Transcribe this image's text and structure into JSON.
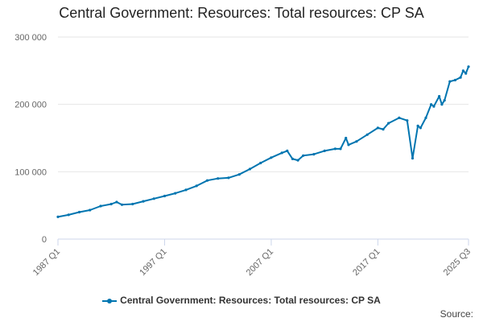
{
  "chart_data": {
    "type": "line",
    "title": "Central Government: Resources: Total resources: CP SA",
    "xlabel": "",
    "ylabel": "",
    "ylim": [
      0,
      300000
    ],
    "y_ticks": [
      0,
      100000,
      200000,
      300000
    ],
    "y_tick_labels": [
      "0",
      "100 000",
      "200 000",
      "300 000"
    ],
    "x_range": [
      "1987 Q1",
      "2025 Q3"
    ],
    "x_ticks": [
      "1987 Q1",
      "1997 Q1",
      "2007 Q1",
      "2017 Q1",
      "2025 Q3"
    ],
    "grid": true,
    "legend_position": "bottom",
    "series": [
      {
        "name": "Central Government: Resources: Total resources: CP SA",
        "color": "#0075b0",
        "points": [
          [
            "1987 Q1",
            33000
          ],
          [
            "1988 Q1",
            36000
          ],
          [
            "1989 Q1",
            40000
          ],
          [
            "1990 Q1",
            43000
          ],
          [
            "1991 Q1",
            49000
          ],
          [
            "1992 Q1",
            52000
          ],
          [
            "1992 Q3",
            55000
          ],
          [
            "1993 Q1",
            51000
          ],
          [
            "1994 Q1",
            52000
          ],
          [
            "1995 Q1",
            56000
          ],
          [
            "1996 Q1",
            60000
          ],
          [
            "1997 Q1",
            64000
          ],
          [
            "1998 Q1",
            68000
          ],
          [
            "1999 Q1",
            73000
          ],
          [
            "2000 Q1",
            79000
          ],
          [
            "2001 Q1",
            87000
          ],
          [
            "2002 Q1",
            90000
          ],
          [
            "2003 Q1",
            91000
          ],
          [
            "2004 Q1",
            96000
          ],
          [
            "2005 Q1",
            104000
          ],
          [
            "2006 Q1",
            113000
          ],
          [
            "2007 Q1",
            121000
          ],
          [
            "2008 Q1",
            128000
          ],
          [
            "2008 Q3",
            131000
          ],
          [
            "2009 Q1",
            119000
          ],
          [
            "2009 Q3",
            117000
          ],
          [
            "2010 Q1",
            124000
          ],
          [
            "2011 Q1",
            126000
          ],
          [
            "2012 Q1",
            131000
          ],
          [
            "2013 Q1",
            134000
          ],
          [
            "2013 Q3",
            134000
          ],
          [
            "2014 Q1",
            150000
          ],
          [
            "2014 Q2",
            140000
          ],
          [
            "2015 Q1",
            145000
          ],
          [
            "2016 Q1",
            155000
          ],
          [
            "2017 Q1",
            165000
          ],
          [
            "2017 Q3",
            163000
          ],
          [
            "2018 Q1",
            172000
          ],
          [
            "2019 Q1",
            180000
          ],
          [
            "2019 Q4",
            176000
          ],
          [
            "2020 Q2",
            120000
          ],
          [
            "2020 Q4",
            168000
          ],
          [
            "2021 Q1",
            165000
          ],
          [
            "2021 Q3",
            180000
          ],
          [
            "2022 Q1",
            200000
          ],
          [
            "2022 Q2",
            197000
          ],
          [
            "2022 Q4",
            212000
          ],
          [
            "2023 Q1",
            200000
          ],
          [
            "2023 Q2",
            206000
          ],
          [
            "2023 Q4",
            234000
          ],
          [
            "2024 Q2",
            236000
          ],
          [
            "2024 Q4",
            240000
          ],
          [
            "2025 Q1",
            250000
          ],
          [
            "2025 Q2",
            246000
          ],
          [
            "2025 Q3",
            256000
          ]
        ]
      }
    ]
  },
  "legend": {
    "label": "Central Government: Resources: Total resources: CP SA"
  },
  "credits": {
    "text": "Source:"
  }
}
